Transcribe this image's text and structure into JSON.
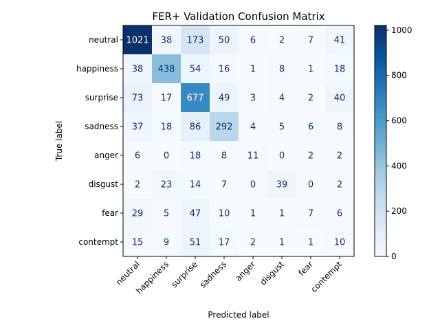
{
  "chart_data": {
    "type": "heatmap",
    "title": "FER+ Validation Confusion Matrix",
    "xlabel": "Predicted label",
    "ylabel": "True label",
    "x_categories": [
      "neutral",
      "happiness",
      "surprise",
      "sadness",
      "anger",
      "disgust",
      "fear",
      "contempt"
    ],
    "y_categories": [
      "neutral",
      "happiness",
      "surprise",
      "sadness",
      "anger",
      "disgust",
      "fear",
      "contempt"
    ],
    "values": [
      [
        1021,
        38,
        173,
        50,
        6,
        2,
        7,
        41
      ],
      [
        38,
        438,
        54,
        16,
        1,
        8,
        1,
        18
      ],
      [
        73,
        17,
        677,
        49,
        3,
        4,
        2,
        40
      ],
      [
        37,
        18,
        86,
        292,
        4,
        5,
        6,
        8
      ],
      [
        6,
        0,
        18,
        8,
        11,
        0,
        2,
        2
      ],
      [
        2,
        23,
        14,
        7,
        0,
        39,
        0,
        2
      ],
      [
        29,
        5,
        47,
        10,
        1,
        1,
        7,
        6
      ],
      [
        15,
        9,
        51,
        17,
        2,
        1,
        1,
        10
      ]
    ],
    "colormap": "Blues",
    "colorbar": {
      "range": [
        0,
        1021
      ],
      "ticks": [
        0,
        200,
        400,
        600,
        800,
        1000
      ]
    },
    "grid": false,
    "x_tick_rotation_deg": 45
  }
}
